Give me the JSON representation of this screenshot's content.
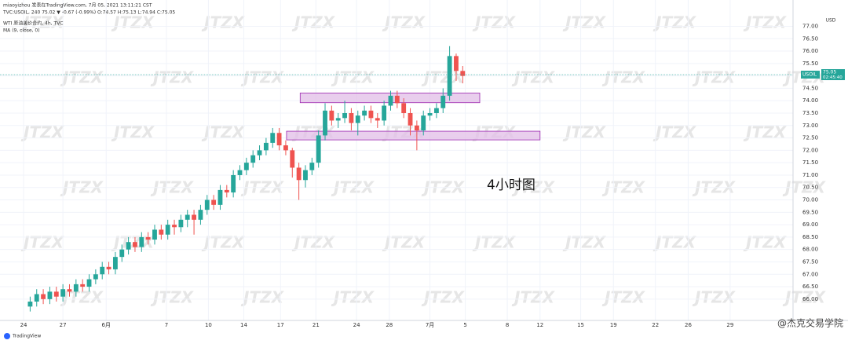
{
  "chart_data": {
    "type": "candlestick",
    "header": {
      "line1": "miaoyizhou 发表在TradingView.com, 7月 05, 2021 13:11:21 CST",
      "line2": "TVC:USOIL, 240 75.02 ▼ -0.67 (-0.99%) O:74.57 H:75.13 L:74.94 C:75.05",
      "line3": "WTI 原油美价合约, 4h, TVC",
      "line4": "MA (9, close, 0)"
    },
    "currency": "USD",
    "annotation": "4小时图",
    "watermark": "JTZX",
    "price_label": {
      "symbol": "USOIL",
      "value": 75.05,
      "countdown": "02:45:40"
    },
    "footer": {
      "logo": "TradingView",
      "credit": "@杰克交易学院"
    },
    "colors": {
      "up": "#26a69a",
      "down": "#ef5350",
      "zone": "#e1bee7",
      "zone_border": "#9c27b0",
      "price_line": "#26a69a"
    },
    "xlim": [
      -1.8,
      58.7
    ],
    "xticks": [
      {
        "value": 0,
        "label": "24"
      },
      {
        "value": 3,
        "label": "27"
      },
      {
        "value": 6.3,
        "label": "6月"
      },
      {
        "value": 10.9,
        "label": "7"
      },
      {
        "value": 14.1,
        "label": "10"
      },
      {
        "value": 16.8,
        "label": "14"
      },
      {
        "value": 19.6,
        "label": "17"
      },
      {
        "value": 22.3,
        "label": "21"
      },
      {
        "value": 25.4,
        "label": "24"
      },
      {
        "value": 27.9,
        "label": "28"
      },
      {
        "value": 31,
        "label": "7月"
      },
      {
        "value": 33.7,
        "label": "5"
      },
      {
        "value": 36.9,
        "label": "8"
      },
      {
        "value": 39.4,
        "label": "12"
      },
      {
        "value": 42.5,
        "label": "15"
      },
      {
        "value": 45,
        "label": "19"
      },
      {
        "value": 48.2,
        "label": "22"
      },
      {
        "value": 50.7,
        "label": "26"
      },
      {
        "value": 53.9,
        "label": "29"
      }
    ],
    "ylim": [
      65.14,
      78.06
    ],
    "yticks": [
      {
        "value": 66,
        "label": "66.00"
      },
      {
        "value": 66.5,
        "label": "66.50"
      },
      {
        "value": 67,
        "label": "67.00"
      },
      {
        "value": 67.5,
        "label": "67.50"
      },
      {
        "value": 68,
        "label": "68.00"
      },
      {
        "value": 68.5,
        "label": "68.50"
      },
      {
        "value": 69,
        "label": "69.00"
      },
      {
        "value": 69.5,
        "label": "69.50"
      },
      {
        "value": 70,
        "label": "70.00"
      },
      {
        "value": 70.5,
        "label": "70.50"
      },
      {
        "value": 71,
        "label": "71.00"
      },
      {
        "value": 71.5,
        "label": "71.50"
      },
      {
        "value": 72,
        "label": "72.00"
      },
      {
        "value": 72.5,
        "label": "72.50"
      },
      {
        "value": 73,
        "label": "73.00"
      },
      {
        "value": 73.5,
        "label": "73.50"
      },
      {
        "value": 74,
        "label": "74.00"
      },
      {
        "value": 74.5,
        "label": "74.50"
      },
      {
        "value": 75,
        "label": "75.00"
      },
      {
        "value": 75.5,
        "label": "75.50"
      },
      {
        "value": 76,
        "label": "76.00"
      },
      {
        "value": 76.5,
        "label": "76.50"
      },
      {
        "value": 77,
        "label": "77.00"
      }
    ],
    "grid": true,
    "zones": [
      {
        "x": [
          21.1,
          34.8
        ],
        "y": [
          73.92,
          74.31
        ]
      },
      {
        "x": [
          20.06,
          39.4
        ],
        "y": [
          72.42,
          72.77
        ]
      }
    ],
    "x": [
      0.5,
      1,
      1.5,
      2,
      2.5,
      3,
      3.5,
      4,
      4.5,
      5,
      5.5,
      6,
      6.5,
      7,
      7.5,
      8,
      8.5,
      9,
      9.5,
      10,
      10.5,
      11,
      11.5,
      12,
      12.5,
      13,
      13.5,
      14,
      14.5,
      15,
      15.5,
      16,
      16.5,
      17,
      17.5,
      18,
      18.5,
      19,
      19.5,
      20,
      20.5,
      21,
      21.5,
      22,
      22.5,
      23,
      23.5,
      24,
      24.5,
      25,
      25.5,
      26,
      26.5,
      27,
      27.5,
      28,
      28.5,
      29,
      29.5,
      30,
      30.5,
      31,
      31.5,
      32,
      32.5,
      33,
      33.5
    ],
    "open": [
      65.7,
      65.9,
      66.2,
      66.0,
      66.3,
      66.1,
      66.4,
      66.3,
      66.6,
      66.5,
      66.8,
      67.0,
      67.3,
      67.2,
      67.7,
      68.0,
      68.3,
      68.1,
      68.5,
      68.4,
      68.8,
      68.6,
      69.0,
      68.9,
      69.2,
      69.4,
      69.2,
      69.6,
      70.0,
      69.8,
      70.4,
      70.3,
      71.0,
      71.2,
      71.5,
      71.8,
      72.0,
      72.3,
      72.7,
      72.2,
      72.0,
      71.3,
      70.8,
      71.2,
      71.5,
      72.6,
      73.6,
      73.2,
      73.3,
      73.5,
      73.1,
      73.4,
      73.6,
      73.3,
      73.2,
      73.8,
      74.2,
      73.9,
      73.5,
      73.0,
      72.8,
      73.4,
      73.5,
      73.7,
      74.2,
      75.8,
      75.2
    ],
    "close": [
      65.9,
      66.2,
      66.0,
      66.3,
      66.1,
      66.4,
      66.3,
      66.6,
      66.5,
      66.8,
      67.0,
      67.3,
      67.2,
      67.7,
      68.0,
      68.3,
      68.1,
      68.5,
      68.4,
      68.8,
      68.6,
      69.0,
      68.9,
      69.2,
      69.4,
      69.2,
      69.6,
      70.0,
      69.8,
      70.4,
      70.3,
      71.0,
      71.2,
      71.5,
      71.8,
      72.0,
      72.3,
      72.7,
      72.2,
      72.0,
      71.3,
      70.8,
      71.2,
      71.5,
      72.6,
      73.6,
      73.2,
      73.3,
      73.5,
      73.1,
      73.4,
      73.6,
      73.3,
      73.2,
      73.8,
      74.2,
      73.9,
      73.5,
      73.0,
      72.8,
      73.4,
      73.5,
      73.7,
      74.2,
      75.8,
      75.2,
      75.0
    ],
    "high": [
      66.1,
      66.4,
      66.4,
      66.5,
      66.5,
      66.6,
      66.6,
      66.8,
      66.8,
      67.0,
      67.2,
      67.5,
      67.5,
      67.9,
      68.2,
      68.5,
      68.5,
      68.7,
      68.7,
      69.0,
      69.0,
      69.2,
      69.2,
      69.4,
      69.6,
      69.6,
      69.8,
      70.2,
      70.2,
      70.6,
      70.6,
      71.2,
      71.4,
      71.7,
      72.0,
      72.2,
      72.5,
      72.9,
      72.9,
      72.4,
      72.1,
      71.5,
      71.4,
      71.7,
      72.8,
      73.9,
      73.8,
      73.5,
      74.0,
      73.7,
      73.6,
      73.8,
      73.8,
      73.5,
      74.0,
      74.4,
      74.4,
      74.1,
      73.7,
      73.2,
      73.6,
      73.7,
      73.9,
      74.5,
      76.2,
      75.9,
      75.4
    ],
    "low": [
      65.5,
      65.7,
      65.8,
      65.8,
      65.9,
      65.9,
      66.1,
      66.1,
      66.3,
      66.3,
      66.6,
      66.8,
      67.0,
      67.0,
      67.5,
      67.8,
      67.9,
      67.9,
      68.2,
      68.2,
      68.4,
      68.4,
      68.6,
      68.7,
      68.9,
      68.6,
      69.0,
      69.4,
      69.6,
      69.6,
      70.1,
      70.1,
      70.8,
      71.0,
      71.3,
      71.6,
      71.8,
      72.1,
      72.0,
      71.8,
      70.9,
      70.0,
      70.5,
      71.0,
      71.3,
      72.4,
      73.0,
      72.9,
      73.1,
      72.8,
      72.6,
      73.2,
      73.1,
      72.9,
      73.0,
      73.6,
      73.7,
      73.3,
      72.6,
      72.0,
      72.6,
      73.2,
      73.3,
      73.5,
      74.0,
      74.8,
      74.7
    ]
  }
}
